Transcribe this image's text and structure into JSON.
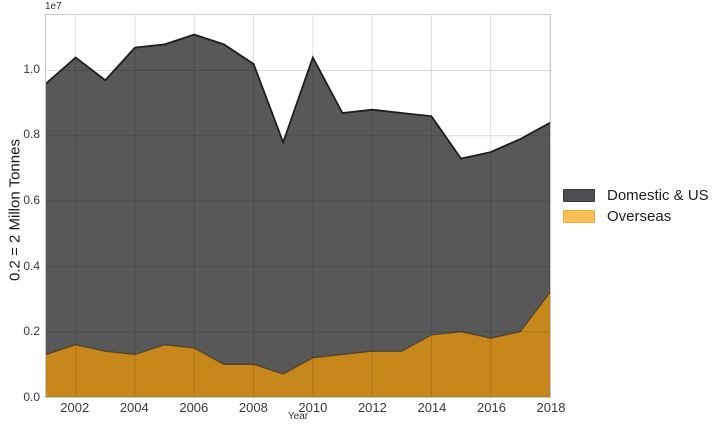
{
  "figure": {
    "offset_text": "1e7",
    "xlabel": "Year",
    "ylabel": "0.2 = 2 Millon Tonnes",
    "background": "#ffffff",
    "spine_color": "#c8c8c8",
    "grid_color": "rgba(0,0,0,0.13)",
    "tick_color": "#3a3a3a"
  },
  "legend": {
    "items": [
      {
        "label": "Domestic & US",
        "swatch_color": "#4e4f52",
        "swatch_border": "#393a3c"
      },
      {
        "label": "Overseas",
        "swatch_color": "#fbc157",
        "swatch_border": "#eda93f"
      }
    ]
  },
  "chart_data": {
    "type": "area",
    "stacked": true,
    "title": "",
    "xlabel": "Year",
    "ylabel": "0.2 = 2 Millon Tonnes",
    "scale_factor": "1e7",
    "x": [
      2001,
      2002,
      2003,
      2004,
      2005,
      2006,
      2007,
      2008,
      2009,
      2010,
      2011,
      2012,
      2013,
      2014,
      2015,
      2016,
      2017,
      2018
    ],
    "series": [
      {
        "name": "Overseas",
        "fill_color": "#c8871c",
        "edge_color": "rgba(35,28,8,0.55)",
        "edge_width": 1.2,
        "values": [
          0.13,
          0.16,
          0.14,
          0.13,
          0.16,
          0.15,
          0.1,
          0.1,
          0.07,
          0.12,
          0.13,
          0.14,
          0.14,
          0.19,
          0.2,
          0.18,
          0.2,
          0.32
        ]
      },
      {
        "name": "Domestic & US",
        "fill_color": "#595859",
        "edge_color": "#1e1e1e",
        "edge_width": 1.8,
        "values": [
          0.83,
          0.88,
          0.83,
          0.94,
          0.92,
          0.96,
          0.98,
          0.92,
          0.71,
          0.92,
          0.74,
          0.74,
          0.73,
          0.67,
          0.53,
          0.57,
          0.59,
          0.52
        ]
      }
    ],
    "totals": [
      0.96,
      1.04,
      0.97,
      1.07,
      1.08,
      1.11,
      1.08,
      1.02,
      0.78,
      1.04,
      0.87,
      0.88,
      0.87,
      0.86,
      0.73,
      0.75,
      0.79,
      0.84
    ],
    "xticks": [
      2002,
      2004,
      2006,
      2008,
      2010,
      2012,
      2014,
      2016,
      2018
    ],
    "yticks": [
      0,
      0.2,
      0.4,
      0.6,
      0.8,
      1.0
    ],
    "xlim": [
      2001,
      2018
    ],
    "ylim": [
      0,
      1.17
    ],
    "grid": true,
    "legend_position": "outside-right-center"
  }
}
